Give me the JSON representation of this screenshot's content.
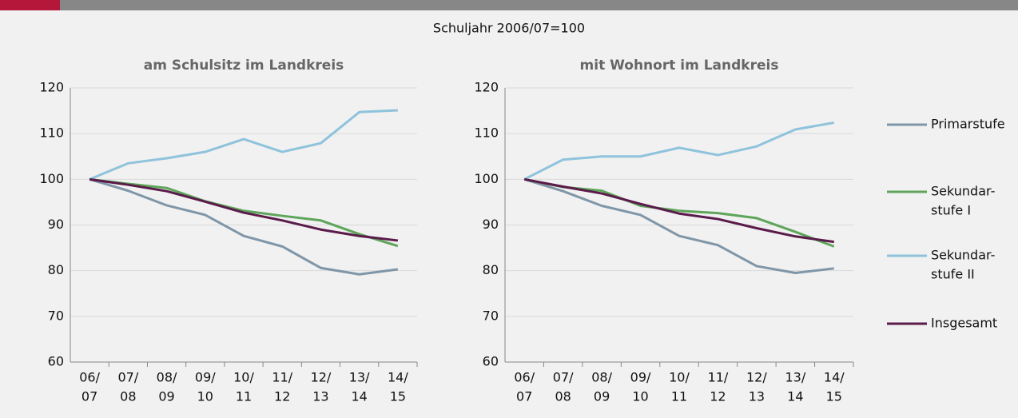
{
  "subtitle": "Schuljahr 2006/07=100",
  "chart_data": [
    {
      "type": "line",
      "title": "am Schulsitz im Landkreis",
      "categories": [
        [
          "06/",
          "07"
        ],
        [
          "07/",
          "08"
        ],
        [
          "08/",
          "09"
        ],
        [
          "09/",
          "10"
        ],
        [
          "10/",
          "11"
        ],
        [
          "11/",
          "12"
        ],
        [
          "12/",
          "13"
        ],
        [
          "13/",
          "14"
        ],
        [
          "14/",
          "15"
        ]
      ],
      "ylim": [
        60,
        120
      ],
      "yticks": [
        60,
        70,
        80,
        90,
        100,
        110,
        120
      ],
      "grid": true,
      "series": [
        {
          "color": "#7f96a8",
          "values": [
            100,
            97.5,
            94.3,
            92.2,
            87.6,
            85.3,
            80.6,
            79.2,
            80.3
          ]
        },
        {
          "color": "#5ea55a",
          "values": [
            100,
            99,
            98.1,
            95.2,
            93.1,
            92,
            91,
            88,
            85.4
          ]
        },
        {
          "color": "#8fc3dc",
          "values": [
            100,
            103.5,
            104.6,
            106,
            108.8,
            106,
            107.9,
            114.7,
            115.1
          ]
        },
        {
          "color": "#5a1a4a",
          "values": [
            100,
            98.8,
            97.4,
            95.1,
            92.7,
            91,
            89,
            87.6,
            86.6
          ]
        }
      ]
    },
    {
      "type": "line",
      "title": "mit Wohnort im Landkreis",
      "categories": [
        [
          "06/",
          "07"
        ],
        [
          "07/",
          "08"
        ],
        [
          "08/",
          "09"
        ],
        [
          "09/",
          "10"
        ],
        [
          "10/",
          "11"
        ],
        [
          "11/",
          "12"
        ],
        [
          "12/",
          "13"
        ],
        [
          "13/",
          "14"
        ],
        [
          "14/",
          "15"
        ]
      ],
      "ylim": [
        60,
        120
      ],
      "yticks": [
        60,
        70,
        80,
        90,
        100,
        110,
        120
      ],
      "grid": true,
      "legend": "right",
      "series": [
        {
          "name": [
            "Primarstufe"
          ],
          "color": "#7f96a8",
          "values": [
            100,
            97.4,
            94.2,
            92.2,
            87.6,
            85.6,
            81,
            79.5,
            80.5
          ]
        },
        {
          "name": [
            "Sekundar-",
            "stufe I"
          ],
          "color": "#5ea55a",
          "values": [
            100,
            98.3,
            97.5,
            94.2,
            93.1,
            92.6,
            91.5,
            88.5,
            85.3
          ]
        },
        {
          "name": [
            "Sekundar-",
            "stufe II"
          ],
          "color": "#8fc3dc",
          "values": [
            100,
            104.3,
            105,
            105,
            106.9,
            105.3,
            107.2,
            110.9,
            112.4
          ]
        },
        {
          "name": [
            "Insgesamt"
          ],
          "color": "#5a1a4a",
          "values": [
            100,
            98.4,
            96.9,
            94.6,
            92.5,
            91.3,
            89.3,
            87.5,
            86.3
          ]
        }
      ]
    }
  ]
}
